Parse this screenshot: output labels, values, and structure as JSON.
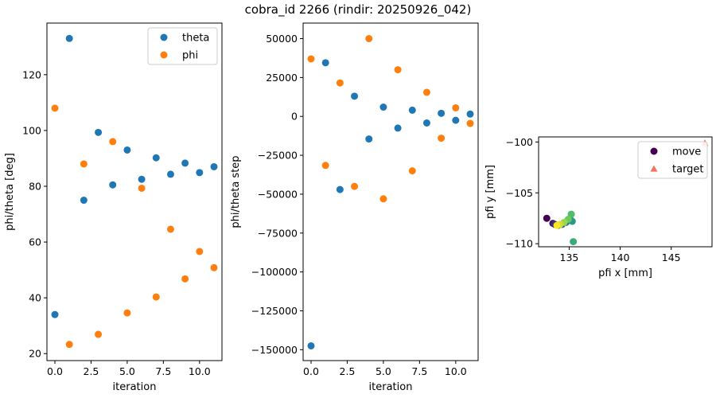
{
  "figure_title": "cobra_id 2266 (rindir: 20250926_042)",
  "colors": {
    "theta": "#1f77b4",
    "phi": "#ff7f0e",
    "target": "#f4735c"
  },
  "chart_data": [
    {
      "type": "scatter",
      "id": "angles",
      "xlabel": "iteration",
      "ylabel": "phi/theta [deg]",
      "xlim": [
        -0.55,
        11.55
      ],
      "ylim": [
        17.5,
        138.5
      ],
      "xticks": [
        0,
        2.5,
        5,
        7.5,
        10
      ],
      "xtick_labels": [
        "0.0",
        "2.5",
        "5.0",
        "7.5",
        "10.0"
      ],
      "yticks": [
        20,
        40,
        60,
        80,
        100,
        120
      ],
      "ytick_labels": [
        "20",
        "40",
        "60",
        "80",
        "100",
        "120"
      ],
      "legend_loc": "upper right",
      "series": [
        {
          "name": "theta",
          "color": "#1f77b4",
          "x": [
            0,
            1,
            2,
            3,
            4,
            5,
            6,
            7,
            8,
            9,
            10,
            11
          ],
          "y": [
            34,
            133,
            75,
            99.3,
            80.5,
            93,
            82.5,
            90.2,
            84.3,
            88.3,
            84.9,
            87
          ]
        },
        {
          "name": "phi",
          "color": "#ff7f0e",
          "x": [
            0,
            1,
            2,
            3,
            4,
            5,
            6,
            7,
            8,
            9,
            10,
            11
          ],
          "y": [
            108,
            23.3,
            88,
            26.9,
            96,
            34.6,
            79.3,
            40.3,
            64.6,
            46.8,
            56.6,
            50.8
          ]
        }
      ]
    },
    {
      "type": "scatter",
      "id": "steps",
      "xlabel": "iteration",
      "ylabel": "phi/theta step",
      "xlim": [
        -0.55,
        11.55
      ],
      "ylim": [
        -157000,
        60000
      ],
      "xticks": [
        0,
        2.5,
        5,
        7.5,
        10
      ],
      "xtick_labels": [
        "0.0",
        "2.5",
        "5.0",
        "7.5",
        "10.0"
      ],
      "yticks": [
        -150000,
        -125000,
        -100000,
        -75000,
        -50000,
        -25000,
        0,
        25000,
        50000
      ],
      "ytick_labels": [
        "−150000",
        "−125000",
        "−100000",
        "−75000",
        "−50000",
        "−25000",
        "0",
        "25000",
        "50000"
      ],
      "series": [
        {
          "name": "theta",
          "color": "#1f77b4",
          "x": [
            0,
            1,
            2,
            3,
            4,
            5,
            6,
            7,
            8,
            9,
            10,
            11
          ],
          "y": [
            -147500,
            34500,
            -47000,
            13000,
            -14500,
            6000,
            -7500,
            4000,
            -4200,
            2000,
            -2500,
            1500
          ]
        },
        {
          "name": "phi",
          "color": "#ff7f0e",
          "x": [
            0,
            1,
            2,
            3,
            4,
            5,
            6,
            7,
            8,
            9,
            10,
            11
          ],
          "y": [
            37000,
            -31500,
            21500,
            -45000,
            50000,
            -53000,
            30000,
            -35000,
            15500,
            -14000,
            5500,
            -4500
          ]
        }
      ]
    },
    {
      "type": "scatter",
      "id": "positions",
      "xlabel": "pfi x [mm]",
      "ylabel": "pfi y [mm]",
      "xlim": [
        132.0,
        149.0
      ],
      "ylim": [
        -110.3,
        -99.5
      ],
      "xticks": [
        135,
        140,
        145
      ],
      "xtick_labels": [
        "135",
        "140",
        "145"
      ],
      "yticks": [
        -110,
        -105,
        -100
      ],
      "ytick_labels": [
        "−110",
        "−105",
        "−100"
      ],
      "legend_loc": "upper right",
      "series": [
        {
          "name": "move",
          "colormap": "viridis",
          "x": [
            132.8,
            133.4,
            133.6,
            133.9,
            134.3,
            134.7,
            135.1,
            135.3,
            135.4,
            135.2,
            134.9,
            134.5,
            134.1,
            133.8
          ],
          "y": [
            -107.5,
            -108.0,
            -108.1,
            -108.2,
            -108.1,
            -107.9,
            -107.6,
            -107.8,
            -109.8,
            -107.1,
            -107.6,
            -107.9,
            -108.1,
            -108.2
          ]
        },
        {
          "name": "target",
          "marker": "triangle",
          "color": "#f4735c",
          "x": [
            148.3
          ],
          "y": [
            -100.1
          ]
        }
      ]
    }
  ]
}
